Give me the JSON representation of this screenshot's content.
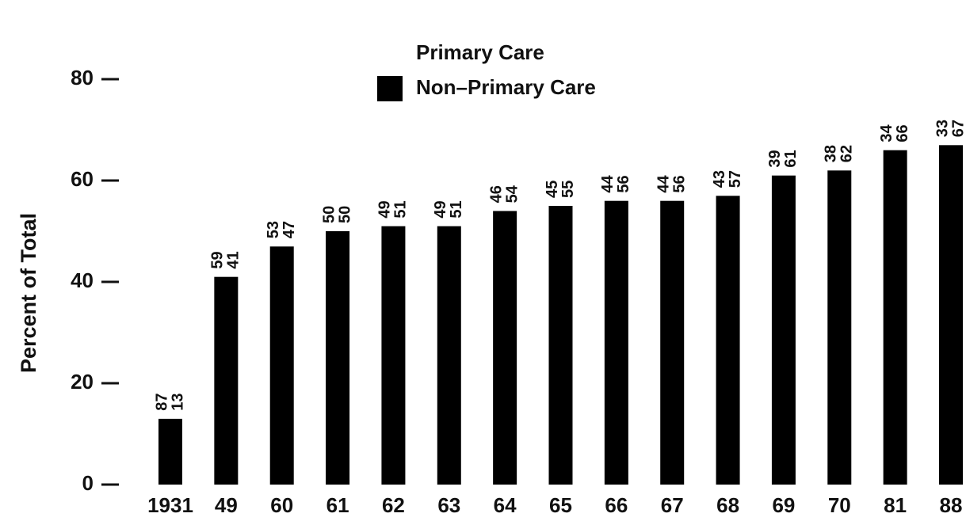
{
  "chart_data": {
    "type": "bar",
    "stacked": true,
    "y_label": "Percent of Total",
    "categories": [
      "1931",
      "49",
      "60",
      "61",
      "62",
      "63",
      "64",
      "65",
      "66",
      "67",
      "68",
      "69",
      "70",
      "81",
      "88"
    ],
    "series": [
      {
        "name": "Non–Primary Care",
        "color": "#000000",
        "values": [
          13,
          41,
          47,
          50,
          51,
          51,
          54,
          55,
          56,
          56,
          57,
          61,
          62,
          66,
          67
        ]
      },
      {
        "name": "Primary Care",
        "color": "#ffffff",
        "values": [
          87,
          59,
          53,
          50,
          49,
          49,
          46,
          45,
          44,
          44,
          43,
          39,
          38,
          34,
          33
        ]
      }
    ],
    "ylim": [
      0,
      95
    ],
    "yticks": [
      0,
      20,
      40,
      60,
      80
    ],
    "grid": false
  }
}
